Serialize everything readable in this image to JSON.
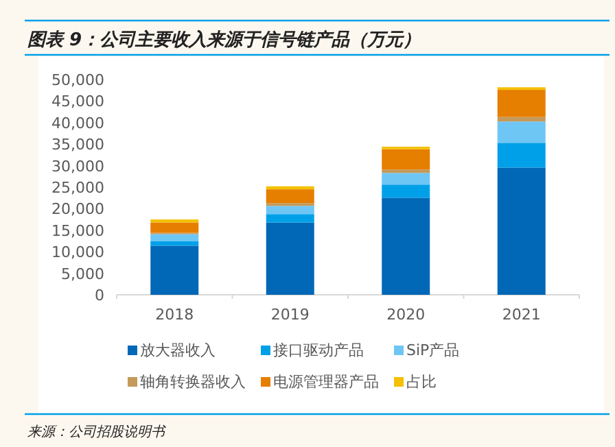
{
  "chart_data": {
    "type": "bar",
    "title": "图表 9：公司主要收入来源于信号链产品（万元）",
    "stacked": true,
    "categories": [
      "2018",
      "2019",
      "2020",
      "2021"
    ],
    "series": [
      {
        "name": "放大器收入",
        "color": "#0068b7",
        "values": [
          11400,
          16800,
          22550,
          29550
        ]
      },
      {
        "name": "接口驱动产品",
        "color": "#00a0e9",
        "values": [
          1100,
          1950,
          3050,
          5750
        ]
      },
      {
        "name": "SiP产品",
        "color": "#6ec6f5",
        "values": [
          1600,
          1900,
          2700,
          4950
        ]
      },
      {
        "name": "轴角转换器收入",
        "color": "#c49a5a",
        "values": [
          300,
          650,
          800,
          1050
        ]
      },
      {
        "name": "电源管理器产品",
        "color": "#e67e00",
        "values": [
          2400,
          3200,
          4700,
          6300
        ]
      },
      {
        "name": "占比",
        "color": "#f5c000",
        "values": [
          700,
          700,
          600,
          600
        ]
      }
    ],
    "ylim": [
      0,
      50000
    ],
    "yticks": [
      {
        "value": 0,
        "label": "0"
      },
      {
        "value": 5000,
        "label": "5,000"
      },
      {
        "value": 10000,
        "label": "10,000"
      },
      {
        "value": 15000,
        "label": "15,000"
      },
      {
        "value": 20000,
        "label": "20,000"
      },
      {
        "value": 25000,
        "label": "25,000"
      },
      {
        "value": 30000,
        "label": "30,000"
      },
      {
        "value": 35000,
        "label": "35,000"
      },
      {
        "value": 40000,
        "label": "40,000"
      },
      {
        "value": 45000,
        "label": "45,000"
      },
      {
        "value": 50000,
        "label": "50,000"
      }
    ],
    "legend": "bottom",
    "grid": false,
    "annotations": [
      "来源：公司招股说明书"
    ]
  }
}
